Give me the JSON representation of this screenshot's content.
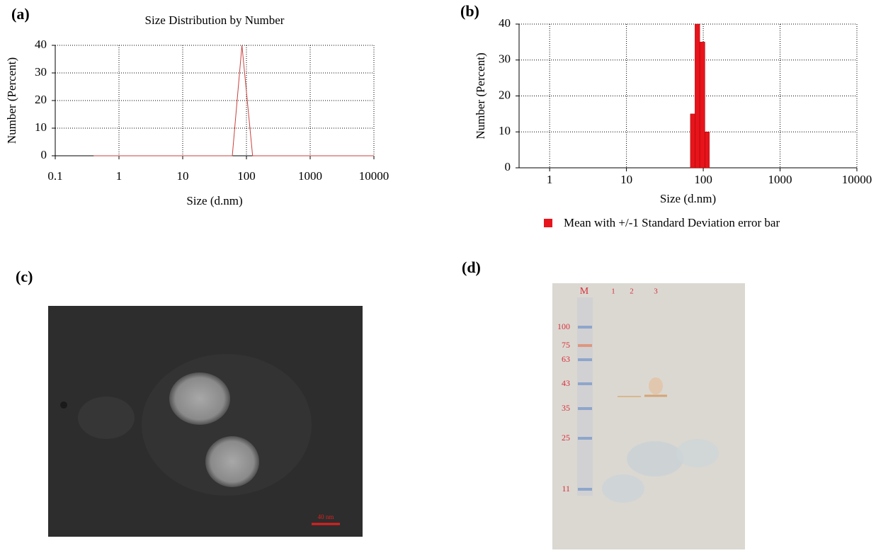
{
  "chart_data": [
    {
      "type": "line",
      "title": "Size Distribution by Number",
      "x_label": "Size (d.nm)",
      "y_label": "Number (Percent)",
      "x": [
        0.4,
        60,
        85,
        125,
        10000
      ],
      "values": [
        0,
        0,
        40,
        0,
        0
      ],
      "color": "#c8403c",
      "log_x": true,
      "grid": true,
      "xlim": [
        0.1,
        10000
      ],
      "xticks": [
        0.1,
        1,
        10,
        100,
        1000,
        10000
      ],
      "ylim": [
        0,
        40
      ],
      "yticks": [
        0,
        10,
        20,
        30,
        40
      ]
    },
    {
      "type": "histogram",
      "x_label": "Size (d.nm)",
      "y_label": "Number (Percent)",
      "bins": [
        68,
        78,
        90,
        105,
        120
      ],
      "series": [
        {
          "name": "Mean with +/-1 Standard Deviation error bar",
          "color": "#e8141b",
          "values": [
            15,
            40,
            35,
            10
          ]
        }
      ],
      "log_x": true,
      "grid": true,
      "xlim": [
        0.4,
        10000
      ],
      "xticks": [
        1,
        10,
        100,
        1000,
        10000
      ],
      "ylim": [
        0,
        40
      ],
      "yticks": [
        0,
        10,
        20,
        30,
        40
      ]
    }
  ],
  "panels": {
    "a": "(a)",
    "b": "(b)",
    "c": "(c)",
    "d": "(d)"
  },
  "tem": {
    "scale_bar": "40 nm"
  },
  "gel": {
    "lanes": [
      "M",
      "1",
      "2",
      "3"
    ],
    "markers": [
      "100",
      "75",
      "63",
      "43",
      "35",
      "25",
      "11"
    ]
  }
}
